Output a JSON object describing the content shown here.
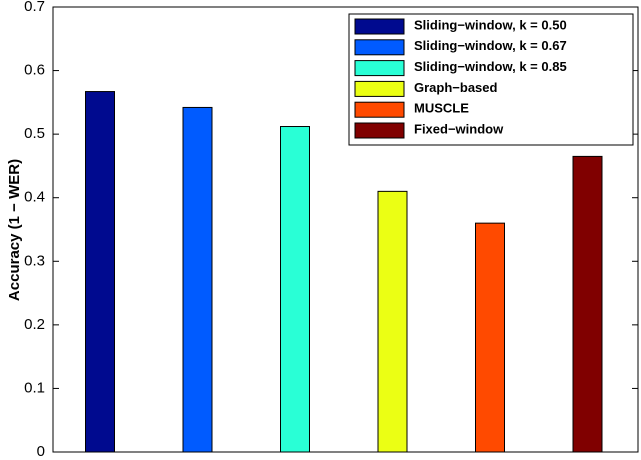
{
  "chart_data": {
    "type": "bar",
    "title": "",
    "xlabel": "",
    "ylabel": "Accuracy (1 − WER)",
    "ylim": [
      0,
      0.7
    ],
    "yticks": [
      0,
      0.1,
      0.2,
      0.3,
      0.4,
      0.5,
      0.6,
      0.7
    ],
    "ytick_labels": [
      "0",
      "0.1",
      "0.2",
      "0.3",
      "0.4",
      "0.5",
      "0.6",
      "0.7"
    ],
    "grid": false,
    "legend_position": "top-right",
    "series": [
      {
        "name": "Sliding−window, k = 0.50",
        "value": 0.567,
        "color": "#000a8f"
      },
      {
        "name": "Sliding−window, k = 0.67",
        "value": 0.542,
        "color": "#005bff"
      },
      {
        "name": "Sliding−window, k = 0.85",
        "value": 0.512,
        "color": "#29ffd6"
      },
      {
        "name": "Graph−based",
        "value": 0.41,
        "color": "#ebff14"
      },
      {
        "name": "MUSCLE",
        "value": 0.36,
        "color": "#ff4a00"
      },
      {
        "name": "Fixed−window",
        "value": 0.465,
        "color": "#800000"
      }
    ]
  }
}
